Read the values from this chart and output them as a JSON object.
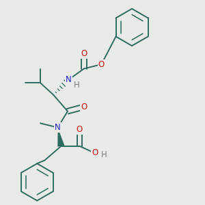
{
  "background_color": "#e8eae8",
  "bond_color": "#2d6b5e",
  "bond_width": 1.4,
  "atom_colors": {
    "N": "#2020cc",
    "O": "#cc1111",
    "H": "#808080"
  },
  "font_size": 8.5,
  "dbo": 0.012
}
